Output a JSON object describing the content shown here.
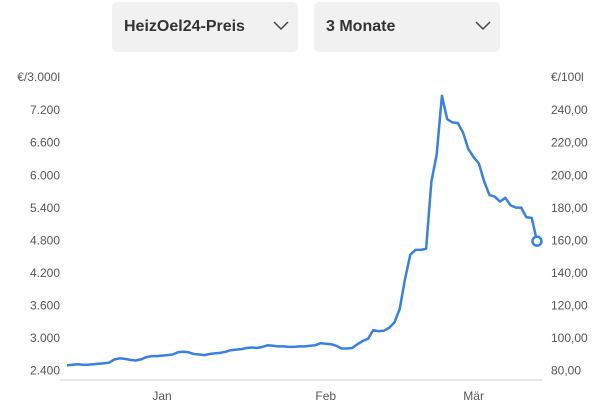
{
  "controls": [
    {
      "label": "HeizOel24-Preis"
    },
    {
      "label": "3 Monate"
    }
  ],
  "chart_data": {
    "type": "line",
    "y_label": "€/3.000l",
    "y2_label": "€/100l",
    "categories": [
      null,
      null,
      null,
      null,
      null,
      null,
      null,
      null,
      null,
      null,
      null,
      null,
      null,
      null,
      null,
      null,
      null,
      null,
      "Jan",
      null,
      null,
      null,
      null,
      null,
      null,
      null,
      null,
      null,
      null,
      null,
      null,
      null,
      null,
      null,
      null,
      null,
      null,
      null,
      null,
      null,
      null,
      null,
      null,
      null,
      null,
      null,
      null,
      null,
      null,
      "Feb",
      null,
      null,
      null,
      null,
      null,
      null,
      null,
      null,
      null,
      null,
      null,
      null,
      null,
      null,
      null,
      null,
      null,
      null,
      null,
      null,
      null,
      null,
      null,
      null,
      null,
      null,
      null,
      "Mär",
      null,
      null,
      null,
      null,
      null,
      null,
      null,
      null,
      null,
      null,
      null,
      null
    ],
    "series": [
      {
        "color": "#3a80e0",
        "values": [
          2510,
          2520,
          2530,
          2520,
          2520,
          2530,
          2540,
          2550,
          2560,
          2620,
          2640,
          2630,
          2610,
          2600,
          2620,
          2660,
          2680,
          2680,
          2690,
          2700,
          2710,
          2750,
          2760,
          2750,
          2720,
          2710,
          2700,
          2720,
          2730,
          2740,
          2760,
          2790,
          2800,
          2810,
          2830,
          2840,
          2830,
          2850,
          2880,
          2870,
          2860,
          2860,
          2850,
          2850,
          2860,
          2860,
          2870,
          2880,
          2920,
          2910,
          2900,
          2870,
          2820,
          2820,
          2830,
          2900,
          2960,
          3000,
          3160,
          3140,
          3150,
          3200,
          3300,
          3550,
          4100,
          4550,
          4640,
          4640,
          4660,
          5900,
          6400,
          7480,
          7050,
          6990,
          6980,
          6800,
          6500,
          6350,
          6230,
          5900,
          5650,
          5620,
          5530,
          5600,
          5460,
          5420,
          5420,
          5240,
          5230,
          4800
        ]
      }
    ],
    "ylim": [
      2240,
      7680
    ],
    "yticks": [
      {
        "value": 2400,
        "label": "2.400"
      },
      {
        "value": 3000,
        "label": "3.000"
      },
      {
        "value": 3600,
        "label": "3.600"
      },
      {
        "value": 4200,
        "label": "4.200"
      },
      {
        "value": 4800,
        "label": "4.800"
      },
      {
        "value": 5400,
        "label": "5.400"
      },
      {
        "value": 6000,
        "label": "6.000"
      },
      {
        "value": 6600,
        "label": "6.600"
      },
      {
        "value": 7200,
        "label": "7.200"
      }
    ],
    "y2lim": [
      74.67,
      256
    ],
    "y2ticks": [
      {
        "value": 80,
        "label": "80,00"
      },
      {
        "value": 100,
        "label": "100,00"
      },
      {
        "value": 120,
        "label": "120,00"
      },
      {
        "value": 140,
        "label": "140,00"
      },
      {
        "value": 160,
        "label": "160,00"
      },
      {
        "value": 180,
        "label": "180,00"
      },
      {
        "value": 200,
        "label": "200,00"
      },
      {
        "value": 220,
        "label": "220,00"
      },
      {
        "value": 240,
        "label": "240,00"
      }
    ]
  }
}
